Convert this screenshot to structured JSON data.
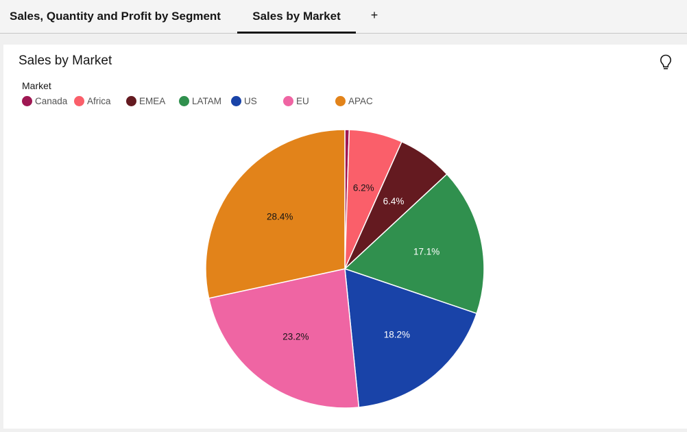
{
  "tabs": [
    {
      "label": "Sales, Quantity and Profit by Segment",
      "active": false
    },
    {
      "label": "Sales by Market",
      "active": true
    }
  ],
  "add_tab_label": "+",
  "panel": {
    "title": "Sales by Market",
    "icon": "lightbulb-icon"
  },
  "chart_data": {
    "type": "pie",
    "title": "",
    "legend_title": "Market",
    "legend_position": "top-left",
    "slices": [
      {
        "name": "Canada",
        "value": 0.5,
        "label": "",
        "color": "#9f1853",
        "label_color": "#161616"
      },
      {
        "name": "Africa",
        "value": 6.2,
        "label": "6.2%",
        "color": "#fa5f6a",
        "label_color": "#161616"
      },
      {
        "name": "EMEA",
        "value": 6.4,
        "label": "6.4%",
        "color": "#641a20",
        "label_color": "#ffffff"
      },
      {
        "name": "LATAM",
        "value": 17.1,
        "label": "17.1%",
        "color": "#30904e",
        "label_color": "#ffffff"
      },
      {
        "name": "US",
        "value": 18.2,
        "label": "18.2%",
        "color": "#1943a8",
        "label_color": "#ffffff"
      },
      {
        "name": "EU",
        "value": 23.2,
        "label": "23.2%",
        "color": "#ef65a3",
        "label_color": "#161616"
      },
      {
        "name": "APAC",
        "value": 28.4,
        "label": "28.4%",
        "color": "#e2831a",
        "label_color": "#161616"
      }
    ]
  }
}
